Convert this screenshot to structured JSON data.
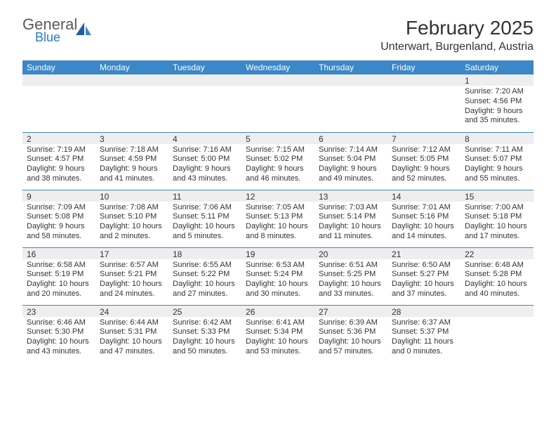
{
  "logo": {
    "text1": "General",
    "text2": "Blue"
  },
  "title": "February 2025",
  "location": "Unterwart, Burgenland, Austria",
  "weekdays": [
    "Sunday",
    "Monday",
    "Tuesday",
    "Wednesday",
    "Thursday",
    "Friday",
    "Saturday"
  ],
  "colors": {
    "header_bg": "#3b87c8",
    "header_text": "#ffffff",
    "daynum_bg": "#eeeeee",
    "rule": "#3b87c8",
    "text": "#333333",
    "logo_gray": "#5a5a5a",
    "logo_blue": "#2b7bbf"
  },
  "weeks": [
    [
      {
        "n": "",
        "sunrise": "",
        "sunset": "",
        "daylight": ""
      },
      {
        "n": "",
        "sunrise": "",
        "sunset": "",
        "daylight": ""
      },
      {
        "n": "",
        "sunrise": "",
        "sunset": "",
        "daylight": ""
      },
      {
        "n": "",
        "sunrise": "",
        "sunset": "",
        "daylight": ""
      },
      {
        "n": "",
        "sunrise": "",
        "sunset": "",
        "daylight": ""
      },
      {
        "n": "",
        "sunrise": "",
        "sunset": "",
        "daylight": ""
      },
      {
        "n": "1",
        "sunrise": "Sunrise: 7:20 AM",
        "sunset": "Sunset: 4:56 PM",
        "daylight": "Daylight: 9 hours and 35 minutes."
      }
    ],
    [
      {
        "n": "2",
        "sunrise": "Sunrise: 7:19 AM",
        "sunset": "Sunset: 4:57 PM",
        "daylight": "Daylight: 9 hours and 38 minutes."
      },
      {
        "n": "3",
        "sunrise": "Sunrise: 7:18 AM",
        "sunset": "Sunset: 4:59 PM",
        "daylight": "Daylight: 9 hours and 41 minutes."
      },
      {
        "n": "4",
        "sunrise": "Sunrise: 7:16 AM",
        "sunset": "Sunset: 5:00 PM",
        "daylight": "Daylight: 9 hours and 43 minutes."
      },
      {
        "n": "5",
        "sunrise": "Sunrise: 7:15 AM",
        "sunset": "Sunset: 5:02 PM",
        "daylight": "Daylight: 9 hours and 46 minutes."
      },
      {
        "n": "6",
        "sunrise": "Sunrise: 7:14 AM",
        "sunset": "Sunset: 5:04 PM",
        "daylight": "Daylight: 9 hours and 49 minutes."
      },
      {
        "n": "7",
        "sunrise": "Sunrise: 7:12 AM",
        "sunset": "Sunset: 5:05 PM",
        "daylight": "Daylight: 9 hours and 52 minutes."
      },
      {
        "n": "8",
        "sunrise": "Sunrise: 7:11 AM",
        "sunset": "Sunset: 5:07 PM",
        "daylight": "Daylight: 9 hours and 55 minutes."
      }
    ],
    [
      {
        "n": "9",
        "sunrise": "Sunrise: 7:09 AM",
        "sunset": "Sunset: 5:08 PM",
        "daylight": "Daylight: 9 hours and 58 minutes."
      },
      {
        "n": "10",
        "sunrise": "Sunrise: 7:08 AM",
        "sunset": "Sunset: 5:10 PM",
        "daylight": "Daylight: 10 hours and 2 minutes."
      },
      {
        "n": "11",
        "sunrise": "Sunrise: 7:06 AM",
        "sunset": "Sunset: 5:11 PM",
        "daylight": "Daylight: 10 hours and 5 minutes."
      },
      {
        "n": "12",
        "sunrise": "Sunrise: 7:05 AM",
        "sunset": "Sunset: 5:13 PM",
        "daylight": "Daylight: 10 hours and 8 minutes."
      },
      {
        "n": "13",
        "sunrise": "Sunrise: 7:03 AM",
        "sunset": "Sunset: 5:14 PM",
        "daylight": "Daylight: 10 hours and 11 minutes."
      },
      {
        "n": "14",
        "sunrise": "Sunrise: 7:01 AM",
        "sunset": "Sunset: 5:16 PM",
        "daylight": "Daylight: 10 hours and 14 minutes."
      },
      {
        "n": "15",
        "sunrise": "Sunrise: 7:00 AM",
        "sunset": "Sunset: 5:18 PM",
        "daylight": "Daylight: 10 hours and 17 minutes."
      }
    ],
    [
      {
        "n": "16",
        "sunrise": "Sunrise: 6:58 AM",
        "sunset": "Sunset: 5:19 PM",
        "daylight": "Daylight: 10 hours and 20 minutes."
      },
      {
        "n": "17",
        "sunrise": "Sunrise: 6:57 AM",
        "sunset": "Sunset: 5:21 PM",
        "daylight": "Daylight: 10 hours and 24 minutes."
      },
      {
        "n": "18",
        "sunrise": "Sunrise: 6:55 AM",
        "sunset": "Sunset: 5:22 PM",
        "daylight": "Daylight: 10 hours and 27 minutes."
      },
      {
        "n": "19",
        "sunrise": "Sunrise: 6:53 AM",
        "sunset": "Sunset: 5:24 PM",
        "daylight": "Daylight: 10 hours and 30 minutes."
      },
      {
        "n": "20",
        "sunrise": "Sunrise: 6:51 AM",
        "sunset": "Sunset: 5:25 PM",
        "daylight": "Daylight: 10 hours and 33 minutes."
      },
      {
        "n": "21",
        "sunrise": "Sunrise: 6:50 AM",
        "sunset": "Sunset: 5:27 PM",
        "daylight": "Daylight: 10 hours and 37 minutes."
      },
      {
        "n": "22",
        "sunrise": "Sunrise: 6:48 AM",
        "sunset": "Sunset: 5:28 PM",
        "daylight": "Daylight: 10 hours and 40 minutes."
      }
    ],
    [
      {
        "n": "23",
        "sunrise": "Sunrise: 6:46 AM",
        "sunset": "Sunset: 5:30 PM",
        "daylight": "Daylight: 10 hours and 43 minutes."
      },
      {
        "n": "24",
        "sunrise": "Sunrise: 6:44 AM",
        "sunset": "Sunset: 5:31 PM",
        "daylight": "Daylight: 10 hours and 47 minutes."
      },
      {
        "n": "25",
        "sunrise": "Sunrise: 6:42 AM",
        "sunset": "Sunset: 5:33 PM",
        "daylight": "Daylight: 10 hours and 50 minutes."
      },
      {
        "n": "26",
        "sunrise": "Sunrise: 6:41 AM",
        "sunset": "Sunset: 5:34 PM",
        "daylight": "Daylight: 10 hours and 53 minutes."
      },
      {
        "n": "27",
        "sunrise": "Sunrise: 6:39 AM",
        "sunset": "Sunset: 5:36 PM",
        "daylight": "Daylight: 10 hours and 57 minutes."
      },
      {
        "n": "28",
        "sunrise": "Sunrise: 6:37 AM",
        "sunset": "Sunset: 5:37 PM",
        "daylight": "Daylight: 11 hours and 0 minutes."
      },
      {
        "n": "",
        "sunrise": "",
        "sunset": "",
        "daylight": ""
      }
    ]
  ]
}
